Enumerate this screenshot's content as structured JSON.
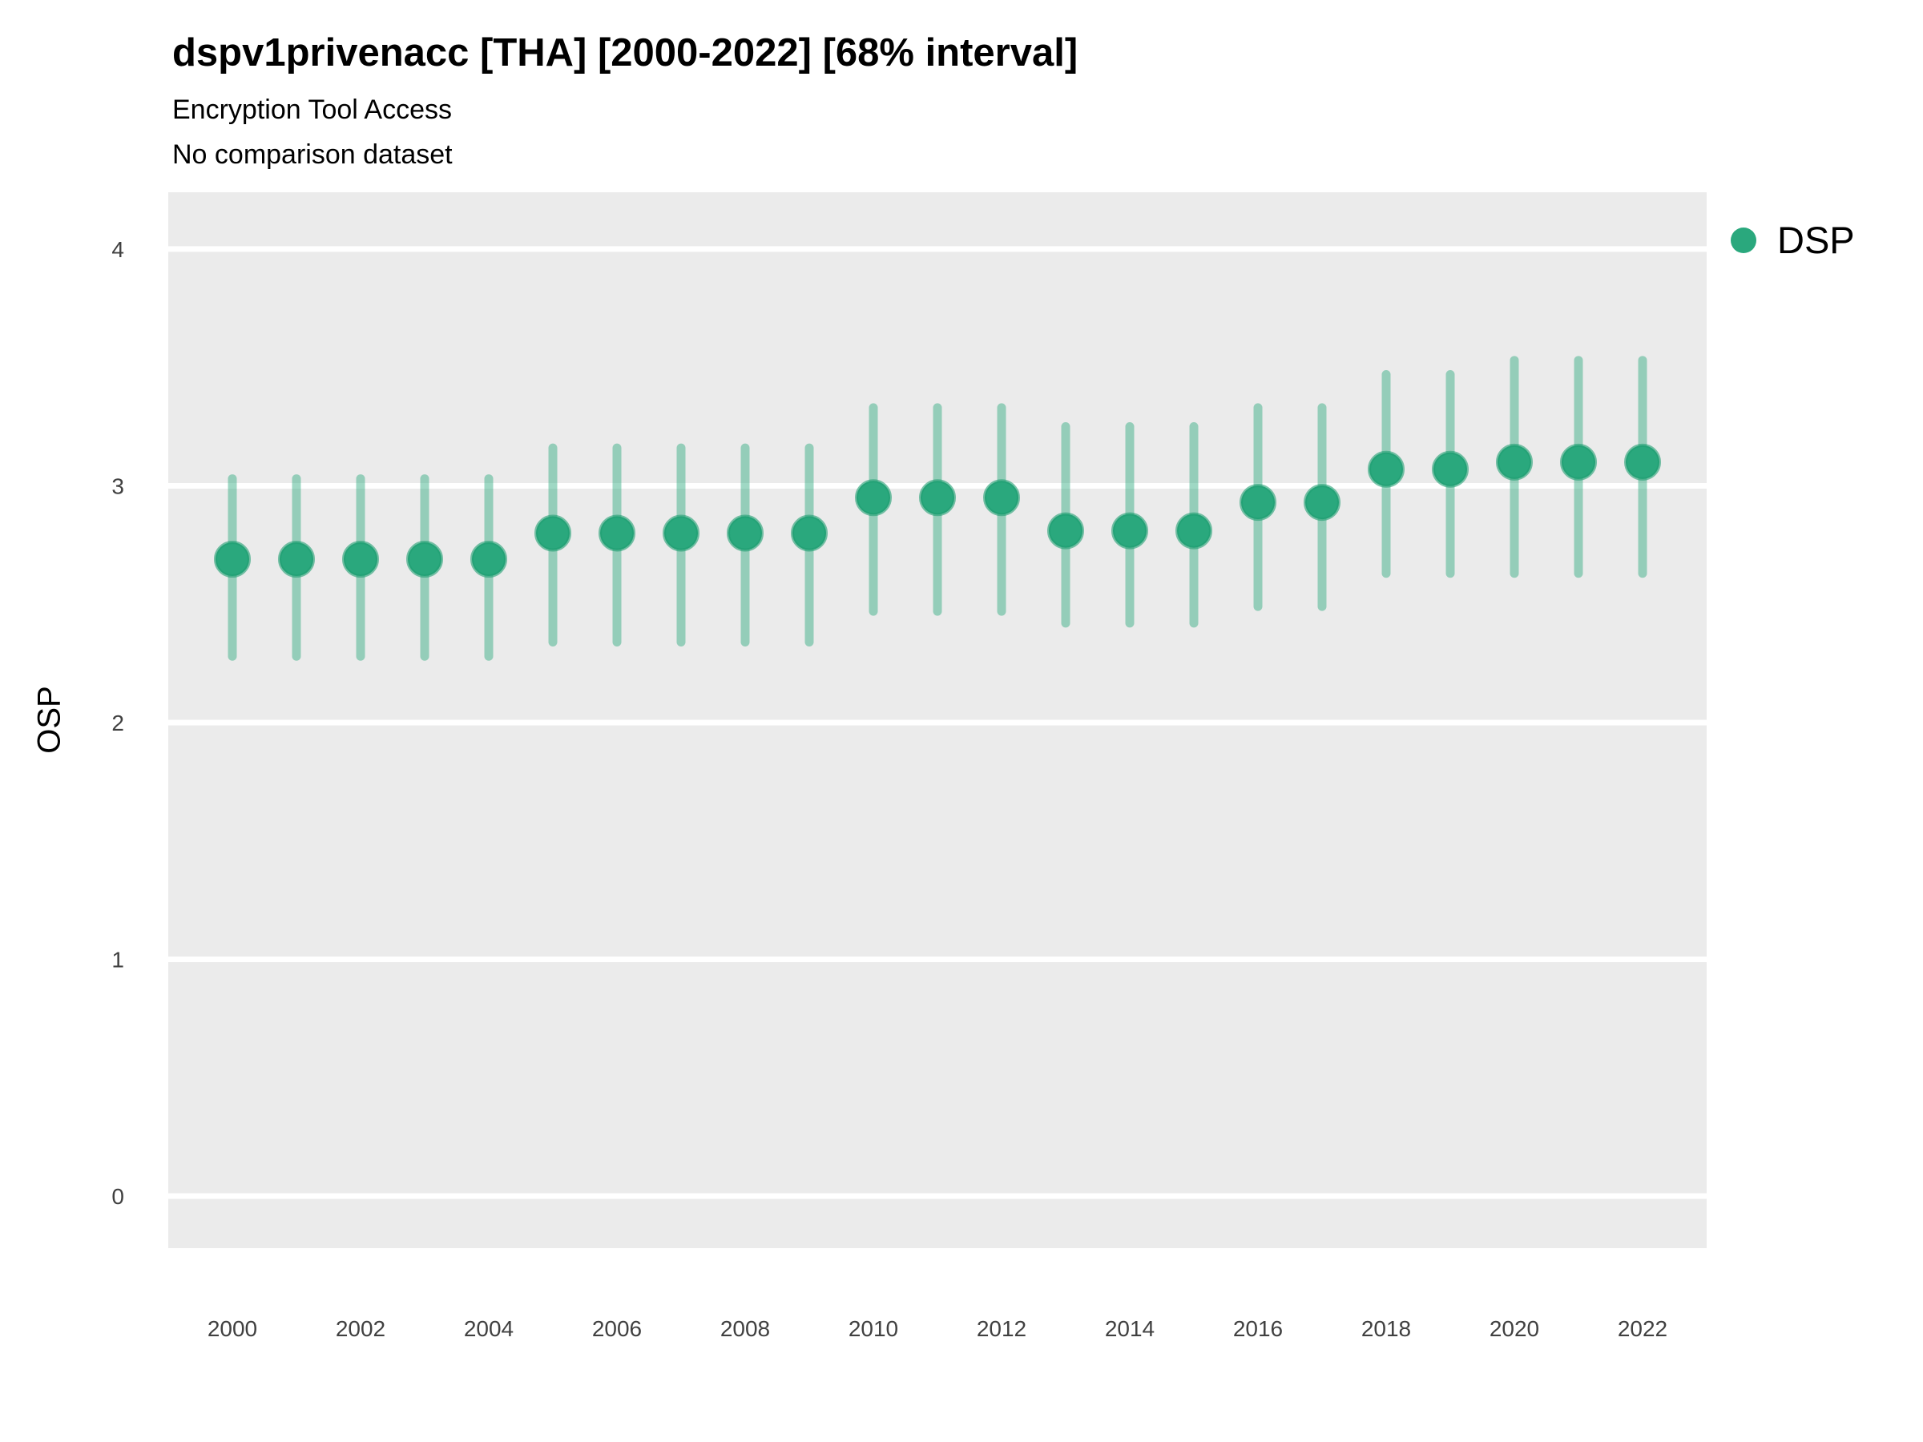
{
  "header": {
    "title": "dspv1privenacc [THA] [2000-2022] [68% interval]",
    "subtitle": "Encryption Tool Access",
    "subtitle2": "No comparison dataset"
  },
  "colors": {
    "accent_green": "#2aa87d",
    "point_stroke": "#1f9e72",
    "interval_green_alpha": 0.45,
    "panel_background": "#ebebeb",
    "gridline": "#ffffff",
    "tick_label": "#404040",
    "text": "#000000"
  },
  "legend": {
    "items": [
      {
        "label": "DSP",
        "swatch_color": "#2aa87d"
      }
    ]
  },
  "chart_data": {
    "type": "scatter",
    "title": "dspv1privenacc [THA] [2000-2022] [68% interval]",
    "subtitle": "Encryption Tool Access",
    "subtitle2": "No comparison dataset",
    "xlabel": "",
    "ylabel": "OSP",
    "legend_position": "right",
    "grid": "major-horizontal-white-on-gray",
    "xlim": [
      1999,
      2023
    ],
    "ylim": [
      -0.22,
      4.24
    ],
    "xticks": [
      2000,
      2002,
      2004,
      2006,
      2008,
      2010,
      2012,
      2014,
      2016,
      2018,
      2020,
      2022
    ],
    "yticks": [
      0,
      1,
      2,
      3,
      4
    ],
    "interval_label": "68% interval",
    "series": [
      {
        "name": "DSP",
        "points": [
          {
            "year": 2000,
            "value": 2.69,
            "lo": 2.28,
            "hi": 3.03
          },
          {
            "year": 2001,
            "value": 2.69,
            "lo": 2.28,
            "hi": 3.03
          },
          {
            "year": 2002,
            "value": 2.69,
            "lo": 2.28,
            "hi": 3.03
          },
          {
            "year": 2003,
            "value": 2.69,
            "lo": 2.28,
            "hi": 3.03
          },
          {
            "year": 2004,
            "value": 2.69,
            "lo": 2.28,
            "hi": 3.03
          },
          {
            "year": 2005,
            "value": 2.8,
            "lo": 2.34,
            "hi": 3.16
          },
          {
            "year": 2006,
            "value": 2.8,
            "lo": 2.34,
            "hi": 3.16
          },
          {
            "year": 2007,
            "value": 2.8,
            "lo": 2.34,
            "hi": 3.16
          },
          {
            "year": 2008,
            "value": 2.8,
            "lo": 2.34,
            "hi": 3.16
          },
          {
            "year": 2009,
            "value": 2.8,
            "lo": 2.34,
            "hi": 3.16
          },
          {
            "year": 2010,
            "value": 2.95,
            "lo": 2.47,
            "hi": 3.33
          },
          {
            "year": 2011,
            "value": 2.95,
            "lo": 2.47,
            "hi": 3.33
          },
          {
            "year": 2012,
            "value": 2.95,
            "lo": 2.47,
            "hi": 3.33
          },
          {
            "year": 2013,
            "value": 2.81,
            "lo": 2.42,
            "hi": 3.25
          },
          {
            "year": 2014,
            "value": 2.81,
            "lo": 2.42,
            "hi": 3.25
          },
          {
            "year": 2015,
            "value": 2.81,
            "lo": 2.42,
            "hi": 3.25
          },
          {
            "year": 2016,
            "value": 2.93,
            "lo": 2.49,
            "hi": 3.33
          },
          {
            "year": 2017,
            "value": 2.93,
            "lo": 2.49,
            "hi": 3.33
          },
          {
            "year": 2018,
            "value": 3.07,
            "lo": 2.63,
            "hi": 3.47
          },
          {
            "year": 2019,
            "value": 3.07,
            "lo": 2.63,
            "hi": 3.47
          },
          {
            "year": 2020,
            "value": 3.1,
            "lo": 2.63,
            "hi": 3.53
          },
          {
            "year": 2021,
            "value": 3.1,
            "lo": 2.63,
            "hi": 3.53
          },
          {
            "year": 2022,
            "value": 3.1,
            "lo": 2.63,
            "hi": 3.53
          }
        ]
      }
    ]
  }
}
